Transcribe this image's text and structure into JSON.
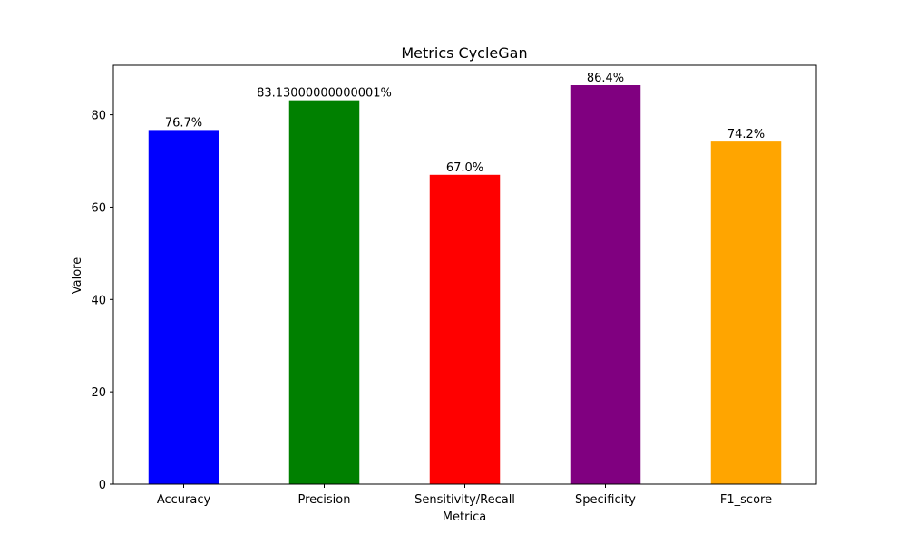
{
  "chart_data": {
    "type": "bar",
    "title": "Metrics CycleGan",
    "xlabel": "Metrica",
    "ylabel": "Valore",
    "categories": [
      "Accuracy",
      "Precision",
      "Sensitivity/Recall",
      "Specificity",
      "F1_score"
    ],
    "values": [
      76.7,
      83.13000000000001,
      67.0,
      86.4,
      74.2
    ],
    "value_labels": [
      "76.7%",
      "83.13000000000001%",
      "67.0%",
      "86.4%",
      "74.2%"
    ],
    "colors": [
      "#0000ff",
      "#008000",
      "#ff0000",
      "#800080",
      "#ffa500"
    ],
    "ylim": [
      0,
      90.72
    ],
    "yticks": [
      0,
      20,
      40,
      60,
      80
    ],
    "grid": false,
    "legend": "none"
  }
}
